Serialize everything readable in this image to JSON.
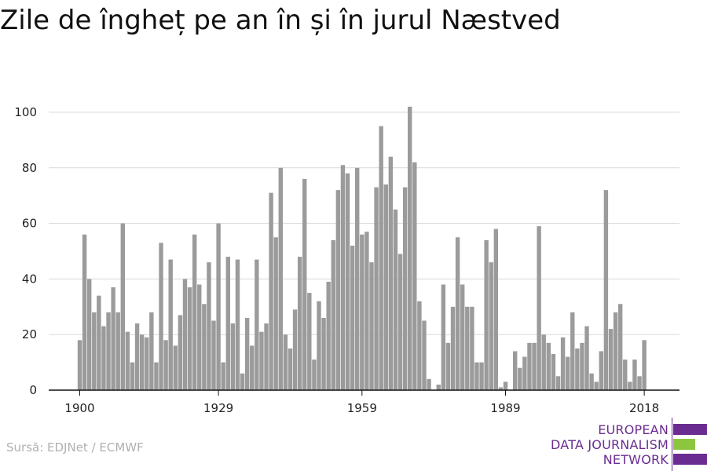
{
  "title": "Zile de îngheț pe an în și în jurul Næstved",
  "source": "Sursă: EDJNet / ECMWF",
  "logo": {
    "line1": "EUROPEAN",
    "line2": "DATA JOURNALISM",
    "line3": "NETWORK",
    "colors": [
      "#6a2c91",
      "#8cc63f",
      "#6a2c91"
    ]
  },
  "colors": {
    "bar": "#9b9b9b",
    "grid": "#d9d9d9",
    "axis": "#111111"
  },
  "chart_data": {
    "type": "bar",
    "title": "Zile de îngheț pe an în și în jurul Næstved",
    "xlabel": "",
    "ylabel": "",
    "ylim": [
      0,
      105
    ],
    "yticks": [
      0,
      20,
      40,
      60,
      80,
      100
    ],
    "xticks": [
      1900,
      1929,
      1959,
      1989,
      2018
    ],
    "grid": true,
    "legend": "none",
    "x": [
      1900,
      1901,
      1902,
      1903,
      1904,
      1905,
      1906,
      1907,
      1908,
      1909,
      1910,
      1911,
      1912,
      1913,
      1914,
      1915,
      1916,
      1917,
      1918,
      1919,
      1920,
      1921,
      1922,
      1923,
      1924,
      1925,
      1926,
      1927,
      1928,
      1929,
      1930,
      1931,
      1932,
      1933,
      1934,
      1935,
      1936,
      1937,
      1938,
      1939,
      1940,
      1941,
      1942,
      1943,
      1944,
      1945,
      1946,
      1947,
      1948,
      1949,
      1950,
      1951,
      1952,
      1953,
      1954,
      1955,
      1956,
      1957,
      1958,
      1959,
      1960,
      1961,
      1962,
      1963,
      1964,
      1965,
      1966,
      1967,
      1968,
      1969,
      1970,
      1971,
      1972,
      1973,
      1974,
      1975,
      1976,
      1977,
      1978,
      1979,
      1980,
      1981,
      1982,
      1983,
      1984,
      1985,
      1986,
      1987,
      1988,
      1989,
      1990,
      1991,
      1992,
      1993,
      1994,
      1995,
      1996,
      1997,
      1998,
      1999,
      2000,
      2001,
      2002,
      2003,
      2004,
      2005,
      2006,
      2007,
      2008,
      2009,
      2010,
      2011,
      2012,
      2013,
      2014,
      2015,
      2016,
      2017,
      2018,
      2019
    ],
    "values": [
      18,
      56,
      40,
      28,
      34,
      23,
      28,
      37,
      28,
      60,
      21,
      10,
      24,
      20,
      19,
      28,
      10,
      53,
      18,
      47,
      16,
      27,
      40,
      37,
      56,
      38,
      31,
      46,
      25,
      60,
      10,
      48,
      24,
      47,
      6,
      26,
      16,
      47,
      21,
      24,
      71,
      55,
      80,
      20,
      15,
      29,
      48,
      76,
      35,
      11,
      32,
      26,
      39,
      54,
      72,
      81,
      78,
      52,
      80,
      56,
      57,
      46,
      73,
      95,
      74,
      84,
      65,
      49,
      73,
      102,
      82,
      32,
      25,
      4,
      0,
      2,
      38,
      17,
      30,
      55,
      38,
      30,
      30,
      10,
      10,
      54,
      46,
      58,
      1,
      3,
      0,
      14,
      8,
      12,
      17,
      17,
      59,
      20,
      17,
      13,
      5,
      19,
      12,
      28,
      15,
      17,
      23,
      6,
      3,
      14,
      72,
      22,
      28,
      31,
      11,
      3,
      11,
      5,
      18,
      0
    ]
  }
}
